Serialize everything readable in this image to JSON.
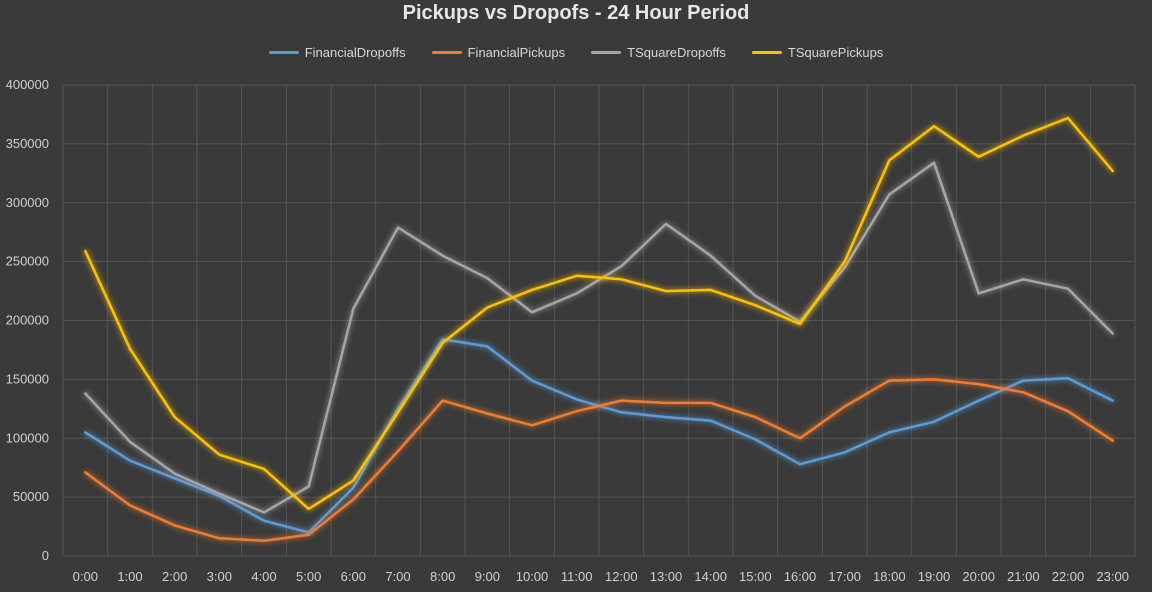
{
  "chart_data": {
    "type": "line",
    "title": "Pickups vs Dropofs - 24 Hour Period",
    "xlabel": "",
    "ylabel": "",
    "categories": [
      "0:00",
      "1:00",
      "2:00",
      "3:00",
      "4:00",
      "5:00",
      "6:00",
      "7:00",
      "8:00",
      "9:00",
      "10:00",
      "11:00",
      "12:00",
      "13:00",
      "14:00",
      "15:00",
      "16:00",
      "17:00",
      "18:00",
      "19:00",
      "20:00",
      "21:00",
      "22:00",
      "23:00"
    ],
    "ylim": [
      0,
      400000
    ],
    "yticks": [
      0,
      50000,
      100000,
      150000,
      200000,
      250000,
      300000,
      350000,
      400000
    ],
    "grid": true,
    "legend_position": "top",
    "series": [
      {
        "name": "FinancialDropoffs",
        "color": "#5b9bd5",
        "values": [
          105000,
          81000,
          66000,
          51000,
          30000,
          20000,
          58000,
          125000,
          184000,
          178000,
          149000,
          133000,
          122000,
          118000,
          115000,
          99000,
          78000,
          88000,
          105000,
          114000,
          132000,
          149000,
          151000,
          132000
        ]
      },
      {
        "name": "FinancialPickups",
        "color": "#ed7d31",
        "values": [
          71000,
          43000,
          26000,
          15000,
          13000,
          18000,
          48000,
          89000,
          132000,
          121000,
          111000,
          123000,
          132000,
          130000,
          130000,
          118000,
          100000,
          127000,
          149000,
          150000,
          146000,
          139000,
          123000,
          98000
        ]
      },
      {
        "name": "TSquareDropoffs",
        "color": "#a5a5a5",
        "values": [
          138000,
          97000,
          70000,
          53000,
          37000,
          59000,
          210000,
          279000,
          255000,
          236000,
          207000,
          223000,
          246000,
          282000,
          255000,
          221000,
          199000,
          245000,
          307000,
          334000,
          223000,
          235000,
          227000,
          189000
        ]
      },
      {
        "name": "TSquarePickups",
        "color": "#ffc000",
        "values": [
          259000,
          176000,
          118000,
          86000,
          74000,
          40000,
          64000,
          122000,
          181000,
          211000,
          226000,
          238000,
          235000,
          225000,
          226000,
          213000,
          197000,
          250000,
          336000,
          365000,
          339000,
          357000,
          372000,
          327000
        ]
      }
    ]
  }
}
